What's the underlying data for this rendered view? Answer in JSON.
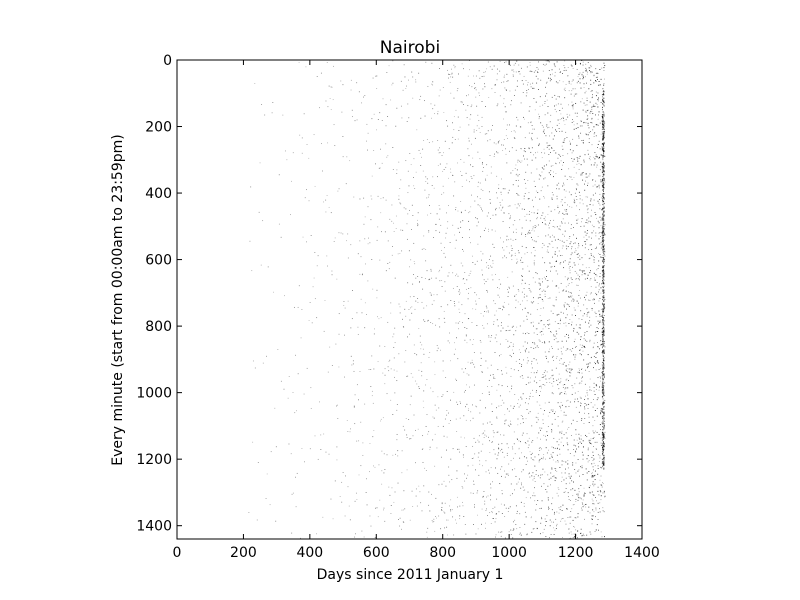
{
  "chart_data": {
    "type": "heatmap",
    "title": "Nairobi",
    "xlabel": "Days since 2011 January 1",
    "ylabel": "Every minute (start from 00:00am to 23:59pm)",
    "xlim": [
      0,
      1400
    ],
    "ylim": [
      1440,
      0
    ],
    "x_ticks": [
      0,
      200,
      400,
      600,
      800,
      1000,
      1200,
      1400
    ],
    "y_ticks": [
      0,
      200,
      400,
      600,
      800,
      1000,
      1200,
      1400
    ],
    "x_tick_labels": [
      "0",
      "200",
      "400",
      "600",
      "800",
      "1000",
      "1200",
      "1400"
    ],
    "y_tick_labels": [
      "0",
      "200",
      "400",
      "600",
      "800",
      "1000",
      "1200",
      "1400"
    ],
    "grid": false,
    "colormap": "binary",
    "mark_color": "#000000",
    "density_profile": {
      "day": [
        0,
        200,
        300,
        400,
        500,
        600,
        700,
        800,
        900,
        1000,
        1100,
        1200,
        1250,
        1285
      ],
      "relative_density": [
        0,
        0.01,
        0.03,
        0.05,
        0.08,
        0.12,
        0.17,
        0.22,
        0.28,
        0.38,
        0.55,
        0.7,
        0.8,
        1.0
      ]
    },
    "data_end_day": 1285
  }
}
